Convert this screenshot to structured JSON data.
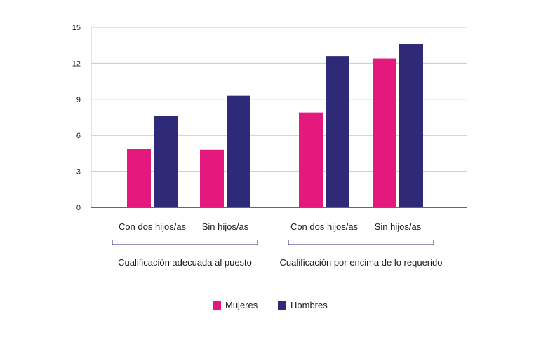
{
  "chart_data": {
    "type": "bar",
    "title": "",
    "xlabel": "",
    "ylabel": "",
    "ylim": [
      0,
      15
    ],
    "yticks": [
      0,
      3,
      6,
      9,
      12,
      15
    ],
    "grid": true,
    "legend_position": "bottom-center",
    "groups": [
      {
        "label": "Cualificación adecuada al puesto",
        "categories": [
          "Con dos hijos/as",
          "Sin hijos/as"
        ]
      },
      {
        "label": "Cualificación por encima de lo requerido",
        "categories": [
          "Con dos hijos/as",
          "Sin hijos/as"
        ]
      }
    ],
    "series": [
      {
        "name": "Mujeres",
        "color": "#e5197d",
        "values": [
          4.9,
          4.8,
          7.9,
          12.4
        ]
      },
      {
        "name": "Hombres",
        "color": "#2e2a78",
        "values": [
          7.6,
          9.3,
          12.6,
          13.6
        ]
      }
    ]
  }
}
